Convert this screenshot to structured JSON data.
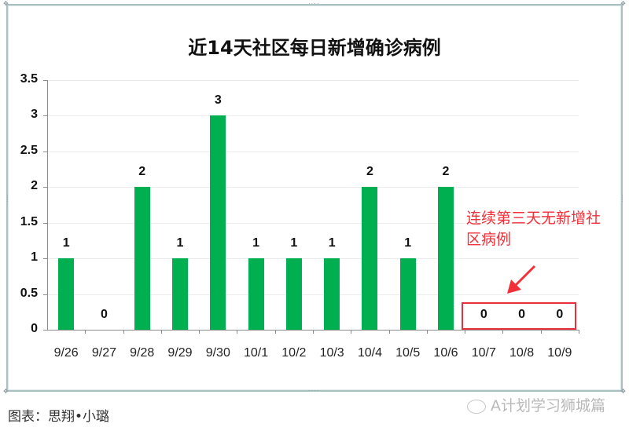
{
  "chart_data": {
    "type": "bar",
    "title": "近14天社区每日新增确诊病例",
    "xlabel": "",
    "ylabel": "",
    "categories": [
      "9/26",
      "9/27",
      "9/28",
      "9/29",
      "9/30",
      "10/1",
      "10/2",
      "10/3",
      "10/4",
      "10/5",
      "10/6",
      "10/7",
      "10/8",
      "10/9"
    ],
    "values": [
      1,
      0,
      2,
      1,
      3,
      1,
      1,
      1,
      2,
      1,
      2,
      0,
      0,
      0
    ],
    "ylim": [
      0,
      3.5
    ],
    "yticks": [
      "0",
      "0.5",
      "1",
      "1.5",
      "2",
      "2.5",
      "3",
      "3.5"
    ],
    "grid": true,
    "legend": null,
    "bar_color": "#00b050",
    "data_labels": [
      "1",
      "0",
      "2",
      "1",
      "3",
      "1",
      "1",
      "1",
      "2",
      "1",
      "2",
      "0",
      "0",
      "0"
    ],
    "annotations": [
      {
        "text": "连续第三天无新增社区病例",
        "color": "#f0313a",
        "target": [
          "10/7",
          "10/8",
          "10/9"
        ]
      }
    ]
  },
  "annotation": {
    "line1": "连续第三天无新增社",
    "line2": "区病例"
  },
  "caption": "图表：思翔•小璐",
  "watermark": "A计划学习狮城篇"
}
